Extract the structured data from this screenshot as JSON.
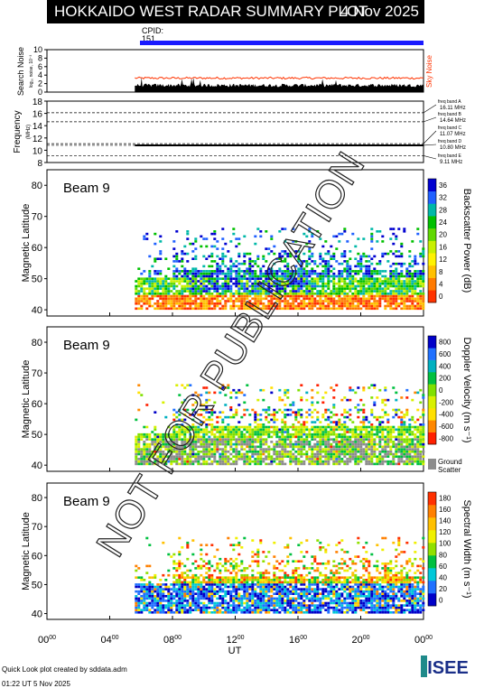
{
  "header": {
    "title": "HOKKAIDO WEST RADAR SUMMARY PLOT",
    "date": "4 Nov 2025"
  },
  "cpid": {
    "label": "CPID:",
    "value": "151"
  },
  "noise_panel": {
    "ylabel": "Search Noise",
    "ylabel_sub": "log₁₀ noise, 10⁻³",
    "ticks": [
      "0",
      "2",
      "4",
      "6",
      "8",
      "10"
    ],
    "legend": "Sky Noise",
    "legend_color": "#ff3300"
  },
  "freq_panel": {
    "ylabel": "Frequency",
    "ylabel_sub": "(MHz)",
    "ticks": [
      "8",
      "10",
      "12",
      "14",
      "16",
      "18"
    ],
    "bands": [
      {
        "label": "freq band A",
        "value": "16.11 MHz"
      },
      {
        "label": "freq band B",
        "value": "14.64 MHz"
      },
      {
        "label": "freq band C",
        "value": "11.07 MHz"
      },
      {
        "label": "freq band D",
        "value": "10.80 MHz"
      },
      {
        "label": "freq band E",
        "value": "9.11 MHz"
      }
    ]
  },
  "panels": [
    {
      "beam": "Beam  9",
      "ylabel": "Magnetic Latitude",
      "cbar_label": "Backscatter Power (dB)",
      "cbar_ticks": [
        "0",
        "4",
        "8",
        "12",
        "16",
        "20",
        "24",
        "28",
        "32",
        "36"
      ],
      "ground_scatter": null
    },
    {
      "beam": "Beam  9",
      "ylabel": "Magnetic Latitude",
      "cbar_label": "Doppler Velocity (m s⁻¹)",
      "cbar_ticks": [
        "-800",
        "-600",
        "-400",
        "-200",
        "0",
        "200",
        "400",
        "600",
        "800"
      ],
      "ground_scatter": {
        "line1": "Ground",
        "line2": "Scatter"
      }
    },
    {
      "beam": "Beam  9",
      "ylabel": "Magnetic Latitude",
      "cbar_label": "Spectral Width (m s⁻¹)",
      "cbar_ticks": [
        "0",
        "20",
        "40",
        "60",
        "80",
        "100",
        "120",
        "140",
        "160",
        "180"
      ],
      "ground_scatter": null
    }
  ],
  "lat_ticks": [
    "40",
    "50",
    "60",
    "70",
    "80"
  ],
  "x_axis": {
    "ticks": [
      {
        "h": "00",
        "m": "00"
      },
      {
        "h": "04",
        "m": "00"
      },
      {
        "h": "08",
        "m": "00"
      },
      {
        "h": "12",
        "m": "00"
      },
      {
        "h": "16",
        "m": "00"
      },
      {
        "h": "20",
        "m": "00"
      },
      {
        "h": "00",
        "m": "00"
      }
    ],
    "label": "UT"
  },
  "watermark": "NOT FOR PUBLICATION",
  "footer": {
    "credit": "Quick Look plot created by sddata.adm",
    "time": "01:22 UT  5 Nov 2025"
  },
  "logo": "ISEE",
  "chart_data": {
    "type": "heatmap",
    "x_unit": "UT hours",
    "xlim": [
      0,
      24
    ],
    "data_start_ut": 5.6,
    "noise": {
      "ylim": [
        0,
        10
      ],
      "sky_noise_level": 3.3,
      "search_noise_level": 1.2
    },
    "frequency": {
      "ylim": [
        8,
        18
      ],
      "reference_lines": [
        16.11,
        14.64,
        11.07,
        10.8,
        9.11
      ],
      "observed": 10.8
    },
    "latitude_ylim": [
      38,
      85
    ],
    "echo_region": {
      "lat_range": [
        40,
        66
      ],
      "ut_range": [
        5.6,
        24
      ]
    },
    "power_colorscale": {
      "range": [
        0,
        36
      ],
      "colors": [
        "#ff3300",
        "#ff7a00",
        "#ffc000",
        "#fff200",
        "#c8f000",
        "#60d800",
        "#00c000",
        "#00b8a8",
        "#2060ff",
        "#0000d0"
      ]
    },
    "velocity_colorscale": {
      "range": [
        -800,
        800
      ],
      "colors": [
        "#ff2000",
        "#ff8800",
        "#ffe000",
        "#d8f000",
        "#80e000",
        "#00c040",
        "#00b0c0",
        "#2070ff",
        "#0000c8"
      ]
    },
    "width_colorscale": {
      "range": [
        0,
        180
      ],
      "colors": [
        "#0000c8",
        "#2070ff",
        "#00c8d8",
        "#00c040",
        "#90e000",
        "#f0f000",
        "#ffc000",
        "#ff8000",
        "#ff3000"
      ]
    }
  }
}
